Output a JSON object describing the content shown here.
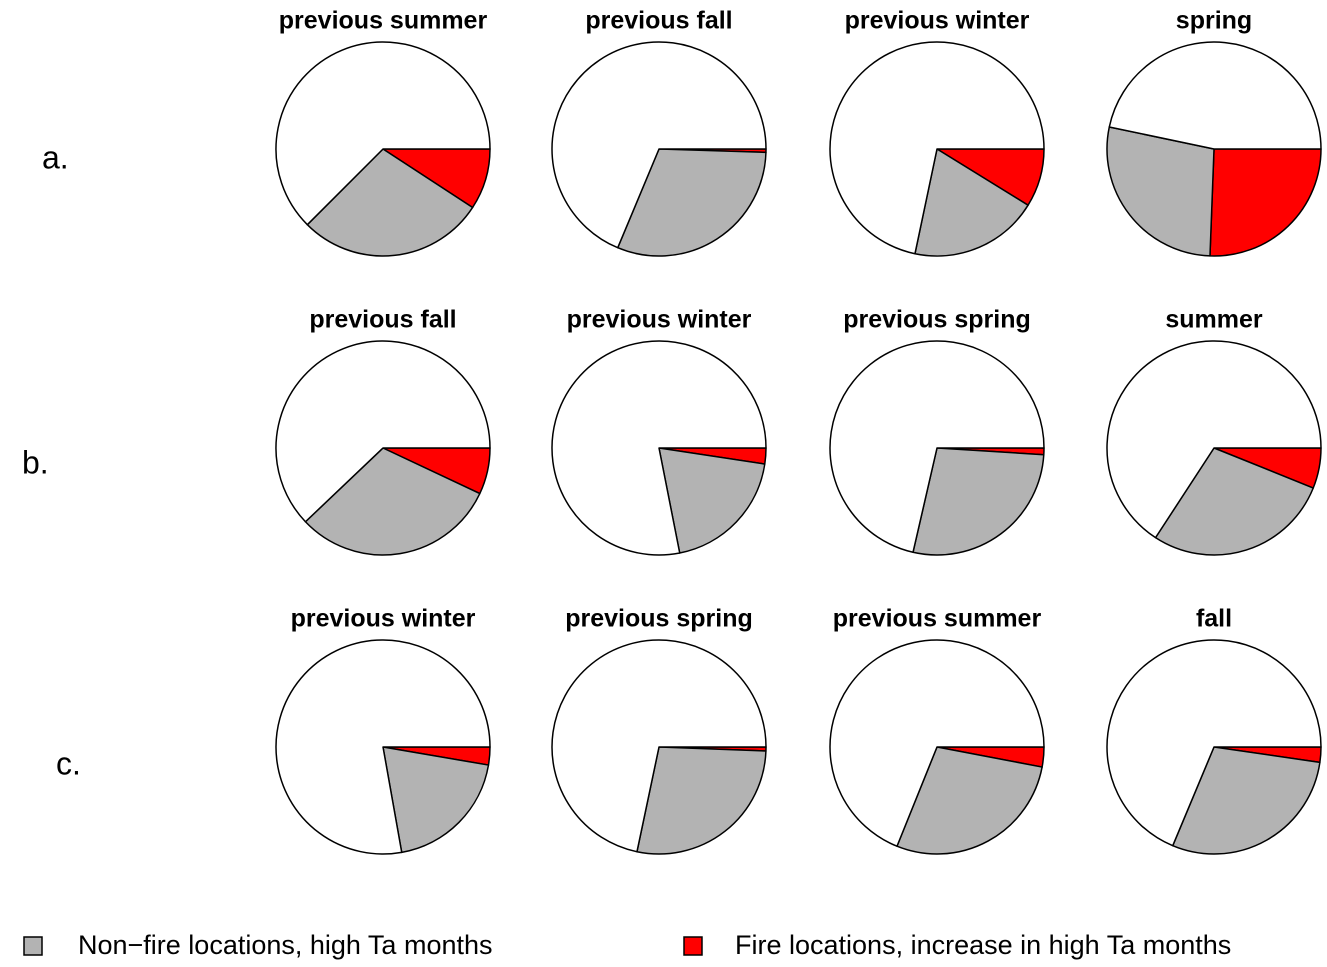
{
  "row_labels": [
    "a.",
    "b.",
    "c."
  ],
  "legend": {
    "categories": [
      "Non−fire locations, high Ta months",
      "Fire locations, increase in high Ta months"
    ],
    "colors": [
      "#b3b3b3",
      "#ff0000"
    ]
  },
  "chart_data": [
    {
      "type": "pie",
      "title": "previous summer",
      "values": [
        9.2,
        28.3,
        62.5
      ],
      "colors": [
        "#ff0000",
        "#b3b3b3",
        "#ffffff"
      ]
    },
    {
      "type": "pie",
      "title": "previous fall",
      "values": [
        0.5,
        30.8,
        68.7
      ],
      "colors": [
        "#ff0000",
        "#b3b3b3",
        "#ffffff"
      ]
    },
    {
      "type": "pie",
      "title": "previous winter",
      "values": [
        8.8,
        19.5,
        71.7
      ],
      "colors": [
        "#ff0000",
        "#b3b3b3",
        "#ffffff"
      ]
    },
    {
      "type": "pie",
      "title": "spring",
      "values": [
        25.6,
        27.7,
        46.7
      ],
      "colors": [
        "#ff0000",
        "#b3b3b3",
        "#ffffff"
      ]
    },
    {
      "type": "pie",
      "title": "previous fall",
      "values": [
        7,
        30.9,
        62.1
      ],
      "colors": [
        "#ff0000",
        "#b3b3b3",
        "#ffffff"
      ]
    },
    {
      "type": "pie",
      "title": "previous winter",
      "values": [
        2.4,
        19.5,
        78.1
      ],
      "colors": [
        "#ff0000",
        "#b3b3b3",
        "#ffffff"
      ]
    },
    {
      "type": "pie",
      "title": "previous spring",
      "values": [
        1,
        27.6,
        71.4
      ],
      "colors": [
        "#ff0000",
        "#b3b3b3",
        "#ffffff"
      ]
    },
    {
      "type": "pie",
      "title": "summer",
      "values": [
        6.1,
        28.1,
        65.8
      ],
      "colors": [
        "#ff0000",
        "#b3b3b3",
        "#ffffff"
      ]
    },
    {
      "type": "pie",
      "title": "previous winter",
      "values": [
        2.7,
        19.5,
        77.8
      ],
      "colors": [
        "#ff0000",
        "#b3b3b3",
        "#ffffff"
      ]
    },
    {
      "type": "pie",
      "title": "previous spring",
      "values": [
        0.6,
        27.7,
        71.7
      ],
      "colors": [
        "#ff0000",
        "#b3b3b3",
        "#ffffff"
      ]
    },
    {
      "type": "pie",
      "title": "previous summer",
      "values": [
        3,
        28.1,
        68.9
      ],
      "colors": [
        "#ff0000",
        "#b3b3b3",
        "#ffffff"
      ]
    },
    {
      "type": "pie",
      "title": "fall",
      "values": [
        2.3,
        29,
        68.7
      ],
      "colors": [
        "#ff0000",
        "#b3b3b3",
        "#ffffff"
      ]
    }
  ]
}
